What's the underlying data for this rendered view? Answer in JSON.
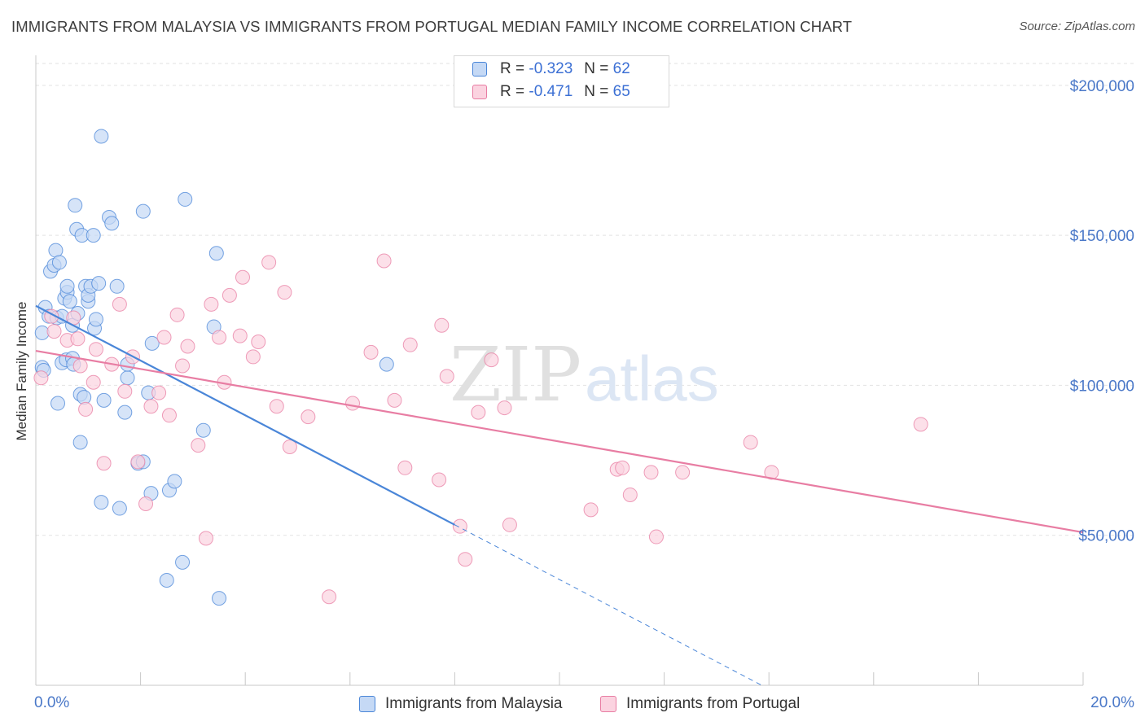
{
  "title": "IMMIGRANTS FROM MALAYSIA VS IMMIGRANTS FROM PORTUGAL MEDIAN FAMILY INCOME CORRELATION CHART",
  "source": "Source: ZipAtlas.com",
  "watermark": {
    "zip": "ZIP",
    "atlas": "atlas"
  },
  "legend": {
    "r_label": "R =",
    "n_label": "N =",
    "rows": [
      {
        "r": "-0.323",
        "n": "62",
        "color": "#4a86d8",
        "fill": "#c5d9f5"
      },
      {
        "r": "-0.471",
        "n": "65",
        "color": "#e87da3",
        "fill": "#fbd3e0"
      }
    ]
  },
  "bottom_legend": [
    "Immigrants from Malaysia",
    "Immigrants from Portugal"
  ],
  "chart_data": {
    "type": "scatter",
    "ylabel": "Median Family Income",
    "xlim": [
      0,
      20
    ],
    "ylim": [
      0,
      210000
    ],
    "x_tick_labels": {
      "left": "0.0%",
      "right": "20.0%"
    },
    "y_ticks": [
      {
        "value": 50000,
        "label": "$50,000"
      },
      {
        "value": 100000,
        "label": "$100,000"
      },
      {
        "value": 150000,
        "label": "$150,000"
      },
      {
        "value": 200000,
        "label": "$200,000"
      }
    ],
    "grid": true,
    "series": [
      {
        "name": "Immigrants from Malaysia",
        "color": "#4a86d8",
        "fill": "#c5d9f5",
        "trend": {
          "x0": 0,
          "y0": 126500,
          "x1": 8.0,
          "y1": 53500,
          "dash_to_x": 13.9
        },
        "points": [
          [
            0.12,
            106000
          ],
          [
            0.15,
            105000
          ],
          [
            0.12,
            117500
          ],
          [
            0.18,
            126000
          ],
          [
            0.25,
            123000
          ],
          [
            0.28,
            138000
          ],
          [
            0.35,
            140000
          ],
          [
            0.38,
            145000
          ],
          [
            0.4,
            122500
          ],
          [
            0.42,
            94000
          ],
          [
            0.45,
            141000
          ],
          [
            0.5,
            123000
          ],
          [
            0.5,
            107500
          ],
          [
            0.55,
            129000
          ],
          [
            0.58,
            108500
          ],
          [
            0.6,
            131000
          ],
          [
            0.6,
            133000
          ],
          [
            0.65,
            128000
          ],
          [
            0.7,
            120000
          ],
          [
            0.7,
            109000
          ],
          [
            0.72,
            107000
          ],
          [
            0.75,
            160000
          ],
          [
            0.78,
            152000
          ],
          [
            0.8,
            124000
          ],
          [
            0.85,
            81000
          ],
          [
            0.85,
            97000
          ],
          [
            0.88,
            150000
          ],
          [
            0.92,
            96000
          ],
          [
            0.95,
            133000
          ],
          [
            1.0,
            128000
          ],
          [
            1.0,
            130000
          ],
          [
            1.05,
            133000
          ],
          [
            1.1,
            150000
          ],
          [
            1.12,
            119000
          ],
          [
            1.15,
            122000
          ],
          [
            1.2,
            134000
          ],
          [
            1.25,
            61000
          ],
          [
            1.25,
            183000
          ],
          [
            1.3,
            95000
          ],
          [
            1.4,
            156000
          ],
          [
            1.45,
            154000
          ],
          [
            1.55,
            133000
          ],
          [
            1.6,
            59000
          ],
          [
            1.7,
            91000
          ],
          [
            1.75,
            102500
          ],
          [
            1.75,
            107000
          ],
          [
            1.95,
            74000
          ],
          [
            2.05,
            74500
          ],
          [
            2.05,
            158000
          ],
          [
            2.15,
            97500
          ],
          [
            2.2,
            64000
          ],
          [
            2.22,
            114000
          ],
          [
            2.5,
            35000
          ],
          [
            2.55,
            65000
          ],
          [
            2.65,
            68000
          ],
          [
            2.8,
            41000
          ],
          [
            2.85,
            162000
          ],
          [
            3.2,
            85000
          ],
          [
            3.4,
            119500
          ],
          [
            3.45,
            144000
          ],
          [
            3.5,
            29000
          ],
          [
            6.7,
            107000
          ]
        ]
      },
      {
        "name": "Immigrants from Portugal",
        "color": "#e87da3",
        "fill": "#fbd3e0",
        "trend": {
          "x0": 0,
          "y0": 111500,
          "x1": 20,
          "y1": 51000
        },
        "points": [
          [
            0.1,
            102500
          ],
          [
            0.3,
            123000
          ],
          [
            0.35,
            118000
          ],
          [
            0.6,
            115000
          ],
          [
            0.72,
            122500
          ],
          [
            0.8,
            115500
          ],
          [
            0.85,
            106500
          ],
          [
            0.95,
            92000
          ],
          [
            1.1,
            101000
          ],
          [
            1.15,
            112000
          ],
          [
            1.3,
            74000
          ],
          [
            1.45,
            107000
          ],
          [
            1.6,
            127000
          ],
          [
            1.7,
            98000
          ],
          [
            1.85,
            109500
          ],
          [
            1.95,
            74500
          ],
          [
            2.1,
            60500
          ],
          [
            2.2,
            93000
          ],
          [
            2.35,
            97500
          ],
          [
            2.45,
            116000
          ],
          [
            2.55,
            90000
          ],
          [
            2.7,
            123500
          ],
          [
            2.8,
            106500
          ],
          [
            2.9,
            113000
          ],
          [
            3.1,
            80000
          ],
          [
            3.25,
            49000
          ],
          [
            3.35,
            127000
          ],
          [
            3.5,
            116000
          ],
          [
            3.6,
            101000
          ],
          [
            3.7,
            130000
          ],
          [
            3.9,
            116500
          ],
          [
            3.95,
            136000
          ],
          [
            4.15,
            109500
          ],
          [
            4.25,
            114500
          ],
          [
            4.45,
            141000
          ],
          [
            4.6,
            93000
          ],
          [
            4.75,
            131000
          ],
          [
            4.85,
            79500
          ],
          [
            5.2,
            89500
          ],
          [
            5.6,
            29500
          ],
          [
            6.05,
            94000
          ],
          [
            6.4,
            111000
          ],
          [
            6.65,
            141500
          ],
          [
            6.85,
            95000
          ],
          [
            7.05,
            72500
          ],
          [
            7.15,
            113500
          ],
          [
            7.7,
            68500
          ],
          [
            7.75,
            120000
          ],
          [
            7.85,
            103000
          ],
          [
            8.1,
            53000
          ],
          [
            8.2,
            42000
          ],
          [
            8.45,
            91000
          ],
          [
            8.7,
            108500
          ],
          [
            8.95,
            92500
          ],
          [
            9.05,
            53500
          ],
          [
            10.6,
            58500
          ],
          [
            11.1,
            72000
          ],
          [
            11.2,
            72500
          ],
          [
            11.35,
            63500
          ],
          [
            11.75,
            71000
          ],
          [
            11.85,
            49500
          ],
          [
            12.35,
            71000
          ],
          [
            13.65,
            81000
          ],
          [
            14.05,
            71000
          ],
          [
            16.9,
            87000
          ]
        ]
      }
    ]
  }
}
